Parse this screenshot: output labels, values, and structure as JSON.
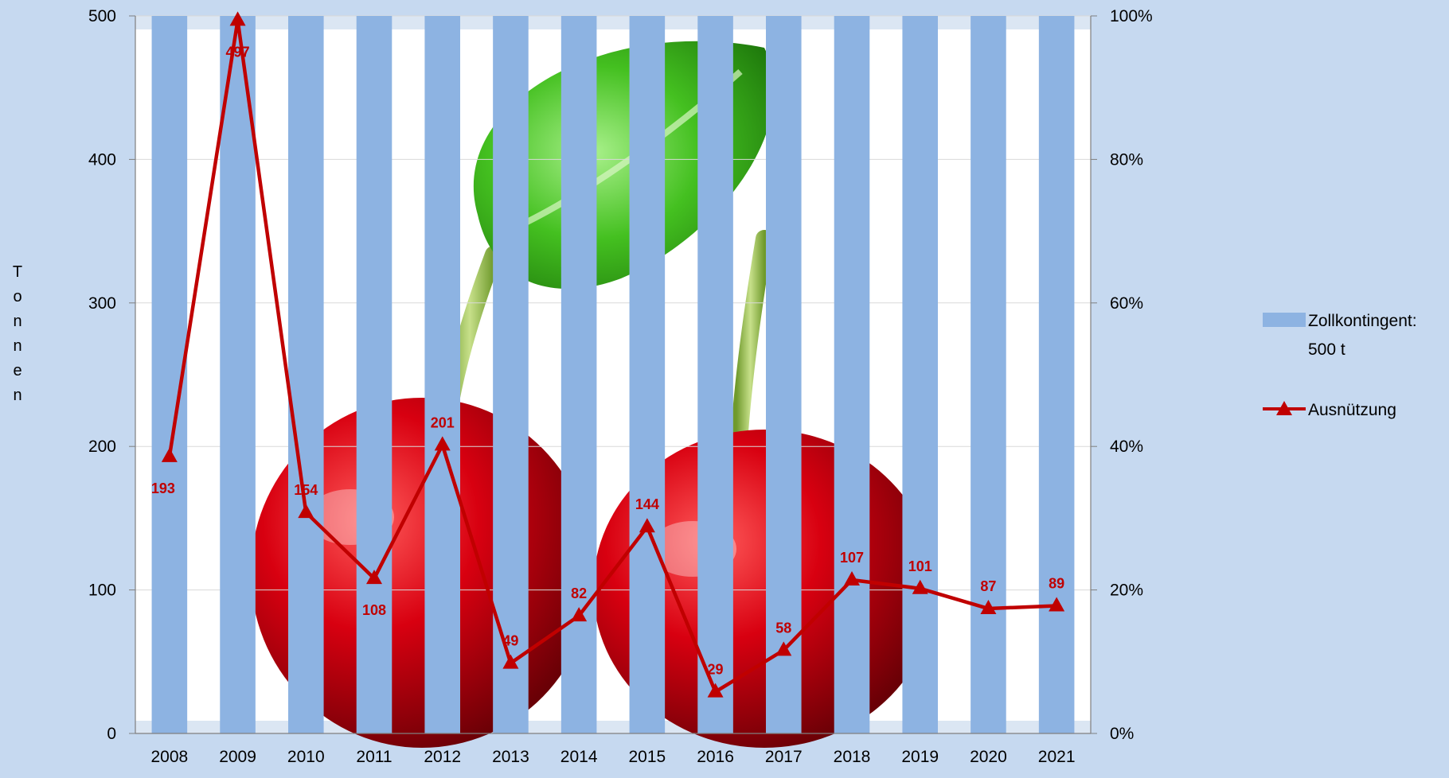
{
  "chart_data": {
    "type": "bar+line",
    "categories": [
      "2008",
      "2009",
      "2010",
      "2011",
      "2012",
      "2013",
      "2014",
      "2015",
      "2016",
      "2017",
      "2018",
      "2019",
      "2020",
      "2021"
    ],
    "series": [
      {
        "name": "Zollkontingent: 500 t",
        "type": "bar",
        "axis": "left",
        "values": [
          500,
          500,
          500,
          500,
          500,
          500,
          500,
          500,
          500,
          500,
          500,
          500,
          500,
          500
        ],
        "color": "#8db3e2"
      },
      {
        "name": "Ausnützung",
        "type": "line",
        "marker": "triangle",
        "axis": "left",
        "values": [
          193,
          497,
          154,
          108,
          201,
          49,
          82,
          144,
          29,
          58,
          107,
          101,
          87,
          89
        ],
        "labels": [
          "193",
          "497",
          "154",
          "108",
          "201",
          "49",
          "82",
          "144",
          "29",
          "58",
          "107",
          "101",
          "87",
          "89"
        ],
        "color": "#c00000"
      }
    ],
    "ylabel": "Tonnen",
    "ylim": [
      0,
      500
    ],
    "yticks": [
      "0",
      "100",
      "200",
      "300",
      "400",
      "500"
    ],
    "y2lim": [
      0,
      100
    ],
    "y2ticks": [
      "0%",
      "20%",
      "40%",
      "60%",
      "80%",
      "100%"
    ],
    "legend": {
      "position": "right",
      "items": [
        {
          "label_line1": "Zollkontingent:",
          "label_line2": "500 t",
          "symbol": "bar"
        },
        {
          "label_line1": "Ausnützung",
          "label_line2": "",
          "symbol": "line-triangle"
        }
      ]
    },
    "grid": true,
    "background_image": "cherries-icon",
    "colors": {
      "background": "#c6d9f0",
      "plot_area": "#ffffff",
      "bar": "#8db3e2",
      "line": "#c00000",
      "label": "#c00000"
    }
  }
}
